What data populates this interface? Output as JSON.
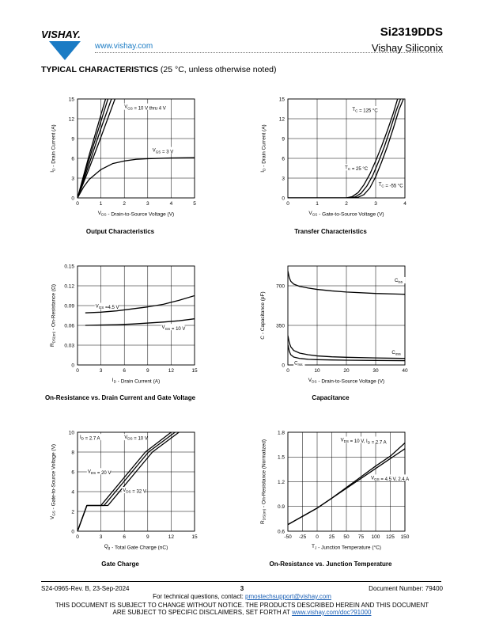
{
  "header": {
    "logo_text": "VISHAY.",
    "url": "www.vishay.com",
    "part_number": "Si2319DDS",
    "company": "Vishay Siliconix"
  },
  "section": {
    "title": "TYPICAL CHARACTERISTICS",
    "condition": "(25 °C, unless otherwise noted)"
  },
  "footer": {
    "doc_rev": "S24-0965-Rev. B, 23-Sep-2024",
    "page_number": "3",
    "doc_number": "Document Number: 79400",
    "contact_prefix": "For technical questions, contact: ",
    "contact_email": "pmostechsupport@vishay.com",
    "disclaimer_line1": "THIS DOCUMENT IS SUBJECT TO CHANGE WITHOUT NOTICE. THE PRODUCTS DESCRIBED HEREIN AND THIS DOCUMENT",
    "disclaimer_line2_prefix": "ARE SUBJECT TO SPECIFIC DISCLAIMERS, SET FORTH AT ",
    "disclaimer_link": "www.vishay.com/doc?91000"
  },
  "chart_data": [
    {
      "id": "output",
      "type": "line",
      "title": "Output Characteristics",
      "xlabel": "VDS - Drain-to-Source Voltage (V)",
      "ylabel": "ID - Drain Current (A)",
      "xlim": [
        0,
        5
      ],
      "ylim": [
        0,
        15
      ],
      "xticks": [
        0,
        1,
        2,
        3,
        4,
        5
      ],
      "yticks": [
        0,
        3,
        6,
        9,
        12,
        15
      ],
      "grid": true,
      "annotations": [
        {
          "text": "VGS = 10 V thru 4 V",
          "x": 2.0,
          "y": 13.6
        },
        {
          "text": "VGS = 3 V",
          "x": 3.2,
          "y": 7.0
        }
      ],
      "series": [
        {
          "x": [
            0,
            0.5,
            1.0,
            1.2
          ],
          "y": [
            0,
            6.5,
            12.6,
            15
          ]
        },
        {
          "x": [
            0,
            0.5,
            1.0,
            1.3
          ],
          "y": [
            0,
            5.9,
            11.6,
            15
          ]
        },
        {
          "x": [
            0,
            0.5,
            1.0,
            1.45
          ],
          "y": [
            0,
            5.2,
            10.5,
            15
          ]
        },
        {
          "x": [
            0,
            0.5,
            1.0,
            1.6
          ],
          "y": [
            0,
            4.5,
            9.2,
            15
          ]
        },
        {
          "x": [
            0,
            0.25,
            0.5,
            1.0,
            1.5,
            2.0,
            2.5,
            3.0,
            4.0,
            5.0
          ],
          "y": [
            0,
            1.6,
            2.8,
            4.3,
            5.2,
            5.6,
            5.85,
            5.95,
            6.05,
            6.1
          ]
        }
      ]
    },
    {
      "id": "transfer",
      "type": "line",
      "title": "Transfer Characteristics",
      "xlabel": "VGS - Gate-to-Source Voltage (V)",
      "ylabel": "ID - Drain Current (A)",
      "xlim": [
        0,
        4
      ],
      "ylim": [
        0,
        15
      ],
      "xticks": [
        0,
        1,
        2,
        3,
        4
      ],
      "yticks": [
        0,
        3,
        6,
        9,
        12,
        15
      ],
      "grid": true,
      "annotations": [
        {
          "text": "TC = 125 °C",
          "x": 2.2,
          "y": 13.2
        },
        {
          "text": "TC = 25 °C",
          "x": 1.95,
          "y": 4.4
        },
        {
          "text": "TC = -55 °C",
          "x": 3.1,
          "y": 1.8
        }
      ],
      "series": [
        {
          "x": [
            0,
            2.0,
            2.2,
            2.4,
            2.6,
            2.8,
            3.0,
            3.2,
            3.4,
            3.6,
            3.75
          ],
          "y": [
            0,
            0,
            0.2,
            0.8,
            2.0,
            3.6,
            5.6,
            7.8,
            10.2,
            12.8,
            15
          ]
        },
        {
          "x": [
            0,
            2.1,
            2.3,
            2.5,
            2.7,
            2.9,
            3.1,
            3.3,
            3.5,
            3.7,
            3.85
          ],
          "y": [
            0,
            0,
            0.15,
            0.7,
            1.8,
            3.4,
            5.5,
            7.8,
            10.4,
            13.2,
            15
          ]
        },
        {
          "x": [
            0,
            2.2,
            2.4,
            2.6,
            2.8,
            3.0,
            3.2,
            3.4,
            3.6,
            3.8,
            3.95
          ],
          "y": [
            0,
            0,
            0.1,
            0.5,
            1.5,
            3.2,
            5.4,
            7.8,
            10.5,
            13.4,
            15
          ]
        }
      ]
    },
    {
      "id": "ron-id",
      "type": "line",
      "title": "On-Resistance vs. Drain Current and Gate Voltage",
      "xlabel": "ID - Drain Current (A)",
      "ylabel": "RDS(on) - On-Resistance (Ω)",
      "xlim": [
        0,
        15
      ],
      "ylim": [
        0,
        0.15
      ],
      "xticks": [
        0,
        3,
        6,
        9,
        12,
        15
      ],
      "yticks": [
        0,
        0.03,
        0.06,
        0.09,
        0.12,
        0.15
      ],
      "grid": true,
      "annotations": [
        {
          "text": "VGS =4.5 V",
          "x": 2.3,
          "y": 0.087
        },
        {
          "text": "VGS = 10 V",
          "x": 10.8,
          "y": 0.055
        }
      ],
      "series": [
        {
          "x": [
            1,
            3,
            5,
            7,
            9,
            11,
            13,
            15
          ],
          "y": [
            0.079,
            0.08,
            0.082,
            0.085,
            0.088,
            0.092,
            0.098,
            0.105
          ]
        },
        {
          "x": [
            1,
            3,
            5,
            7,
            9,
            11,
            13,
            15
          ],
          "y": [
            0.06,
            0.0605,
            0.061,
            0.062,
            0.0635,
            0.065,
            0.067,
            0.07
          ]
        }
      ]
    },
    {
      "id": "capacitance",
      "type": "line",
      "title": "Capacitance",
      "xlabel": "VDS - Drain-to-Source Voltage (V)",
      "ylabel": "C - Capacitance (pF)",
      "xlim": [
        0,
        40
      ],
      "ylim": [
        0,
        875
      ],
      "xticks": [
        0,
        10,
        20,
        30,
        40
      ],
      "yticks": [
        0,
        350,
        700
      ],
      "grid": true,
      "annotations": [
        {
          "text": "Ciss",
          "x": 36.5,
          "y": 735
        },
        {
          "text": "Coss",
          "x": 35.5,
          "y": 98
        },
        {
          "text": "Crss",
          "x": 2.2,
          "y": 4
        }
      ],
      "series": [
        {
          "name": "Ciss",
          "x": [
            0,
            0.5,
            1,
            2,
            4,
            7,
            10,
            15,
            20,
            30,
            40
          ],
          "y": [
            830,
            770,
            740,
            715,
            695,
            680,
            668,
            655,
            645,
            632,
            625
          ]
        },
        {
          "name": "Coss",
          "x": [
            0,
            0.5,
            1,
            2,
            4,
            7,
            10,
            15,
            20,
            30,
            40
          ],
          "y": [
            260,
            195,
            160,
            128,
            105,
            90,
            80,
            72,
            68,
            62,
            58
          ]
        },
        {
          "name": "Crss",
          "x": [
            0,
            0.5,
            1,
            2,
            4,
            7,
            10,
            15,
            20,
            30,
            40
          ],
          "y": [
            180,
            120,
            90,
            70,
            58,
            50,
            47,
            44,
            42,
            40,
            38
          ]
        }
      ]
    },
    {
      "id": "gate-charge",
      "type": "line",
      "title": "Gate Charge",
      "xlabel": "Qg - Total Gate Charge (nC)",
      "ylabel": "VGS - Gate-to-Source Voltage (V)",
      "xlim": [
        0,
        15
      ],
      "ylim": [
        0,
        10
      ],
      "xticks": [
        0,
        3,
        6,
        9,
        12,
        15
      ],
      "yticks": [
        0,
        2,
        4,
        6,
        8,
        10
      ],
      "grid": true,
      "annotations": [
        {
          "text": "ID = 2.7 A",
          "x": 0.3,
          "y": 9.35
        },
        {
          "text": "VDS = 10 V",
          "x": 6.0,
          "y": 9.35
        },
        {
          "text": "VDS = 20 V",
          "x": 1.3,
          "y": 5.9
        },
        {
          "text": "VDS = 32 V",
          "x": 5.8,
          "y": 4.0
        }
      ],
      "series": [
        {
          "name": "VDS = 10 V",
          "x": [
            0,
            1.2,
            3.0,
            8.7,
            12.0
          ],
          "y": [
            0,
            2.6,
            2.6,
            8.0,
            10.0
          ]
        },
        {
          "name": "VDS = 20 V",
          "x": [
            0,
            1.2,
            3.4,
            9.1,
            12.5
          ],
          "y": [
            0,
            2.6,
            2.6,
            8.0,
            10.0
          ]
        },
        {
          "name": "VDS = 32 V",
          "x": [
            0,
            1.2,
            3.9,
            9.6,
            13.0
          ],
          "y": [
            0,
            2.6,
            2.6,
            8.0,
            10.0
          ]
        }
      ]
    },
    {
      "id": "ron-tj",
      "type": "line",
      "title": "On-Resistance vs. Junction Temperature",
      "xlabel": "TJ - Junction Temperature (°C)",
      "ylabel": "RDS(on) - On-Resistance (Normalized)",
      "xlim": [
        -50,
        150
      ],
      "ylim": [
        0.6,
        1.8
      ],
      "xticks": [
        -50,
        -25,
        0,
        25,
        50,
        75,
        100,
        125,
        150
      ],
      "yticks": [
        0.6,
        0.9,
        1.2,
        1.5,
        1.8
      ],
      "grid": true,
      "annotations": [
        {
          "text": "VDS = 10 V, ID = 2.7 A",
          "x": 40,
          "y": 1.69
        },
        {
          "text": "VGS = 4.5 V, 2.4 A",
          "x": 92,
          "y": 1.23
        }
      ],
      "series": [
        {
          "x": [
            -50,
            -25,
            0,
            25,
            50,
            75,
            100,
            125,
            150
          ],
          "y": [
            0.68,
            0.78,
            0.88,
            1.0,
            1.13,
            1.26,
            1.39,
            1.51,
            1.67
          ]
        },
        {
          "x": [
            -50,
            -25,
            0,
            25,
            50,
            75,
            100,
            125,
            150
          ],
          "y": [
            0.68,
            0.78,
            0.88,
            1.0,
            1.12,
            1.24,
            1.36,
            1.48,
            1.6
          ]
        }
      ]
    }
  ]
}
